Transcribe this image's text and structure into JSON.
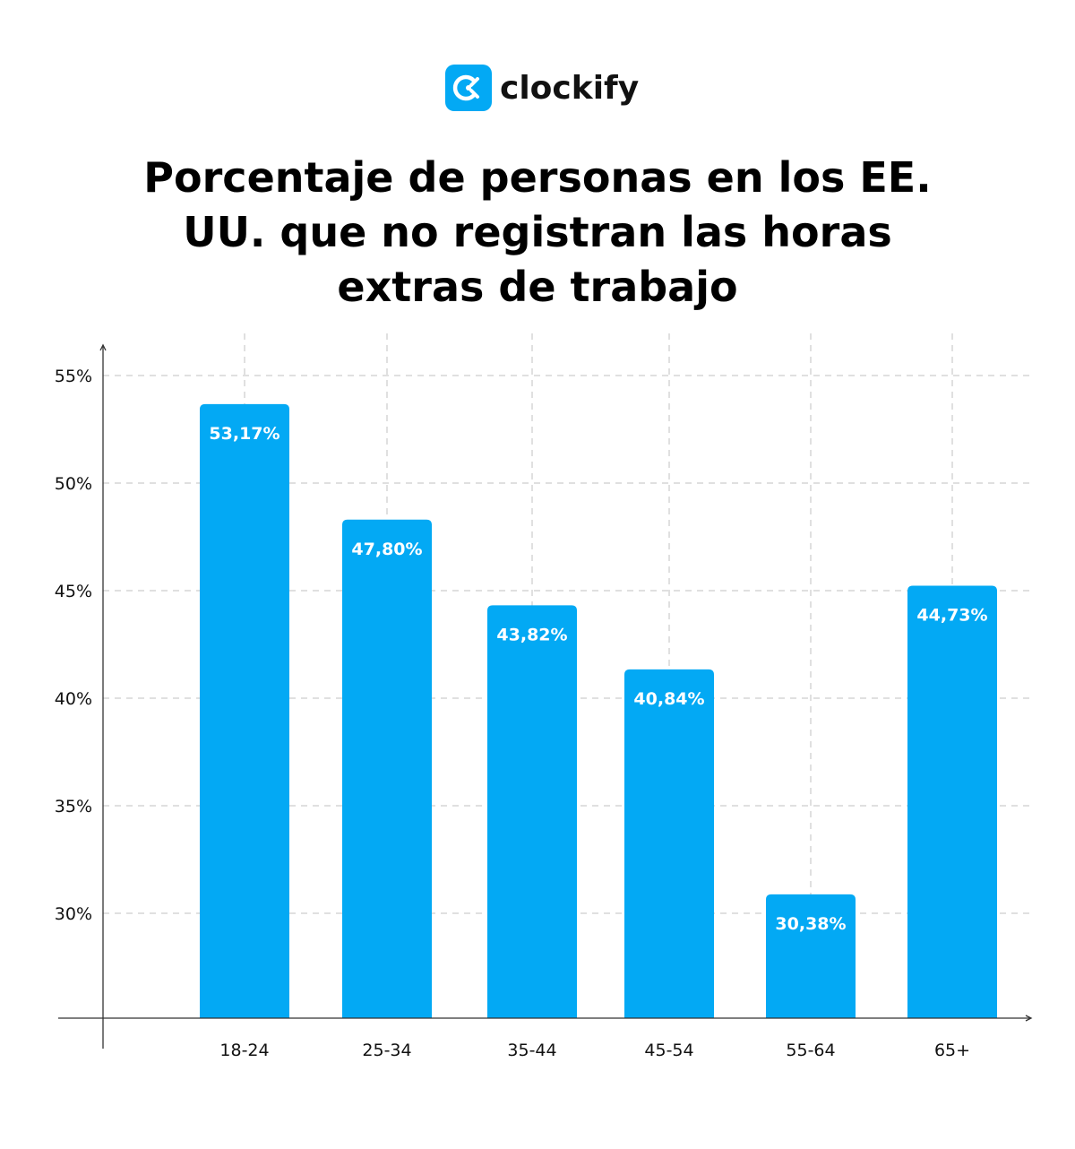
{
  "brand": {
    "name": "clockify",
    "color": "#03a9f4"
  },
  "chart_data": {
    "type": "bar",
    "title": [
      "Porcentaje de personas en los EE.",
      "UU. que no registran las horas",
      "extras de trabajo"
    ],
    "categories": [
      "18-24",
      "25-34",
      "35-44",
      "45-54",
      "55-64",
      "65+"
    ],
    "values": [
      53.17,
      47.8,
      43.82,
      40.84,
      30.38,
      44.73
    ],
    "data_labels": [
      "53,17%",
      "47,80%",
      "43,82%",
      "40,84%",
      "30,38%",
      "44,73%"
    ],
    "yticks": [
      30,
      35,
      40,
      45,
      50,
      55
    ],
    "ytick_labels": [
      "30%",
      "35%",
      "40%",
      "45%",
      "50%",
      "55%"
    ],
    "ylim": [
      25.1,
      56.5
    ],
    "xlabel": "",
    "ylabel": "",
    "grid": true,
    "bar_color": "#03a9f4"
  }
}
